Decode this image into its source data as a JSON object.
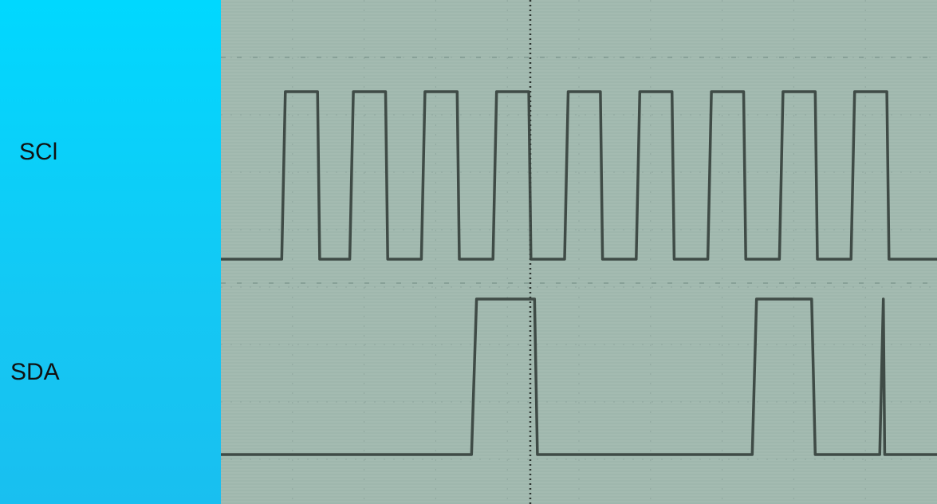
{
  "labels": {
    "scl": "SCl",
    "sda": "SDA"
  },
  "colors": {
    "background": "#00d8ff",
    "screen": "#9fb7ad",
    "trace": "#3a4440",
    "grid": "#7f9890"
  },
  "chart_data": {
    "type": "line",
    "title": "",
    "xlabel": "",
    "ylabel": "",
    "grid": true,
    "xlim": [
      0,
      10
    ],
    "series": [
      {
        "name": "SCl",
        "points": [
          [
            0.0,
            0
          ],
          [
            0.85,
            0
          ],
          [
            0.9,
            1
          ],
          [
            1.35,
            1
          ],
          [
            1.38,
            0
          ],
          [
            1.8,
            0
          ],
          [
            1.85,
            1
          ],
          [
            2.3,
            1
          ],
          [
            2.33,
            0
          ],
          [
            2.8,
            0
          ],
          [
            2.85,
            1
          ],
          [
            3.3,
            1
          ],
          [
            3.33,
            0
          ],
          [
            3.8,
            0
          ],
          [
            3.85,
            1
          ],
          [
            4.3,
            1
          ],
          [
            4.33,
            0
          ],
          [
            4.8,
            0
          ],
          [
            4.85,
            1
          ],
          [
            5.3,
            1
          ],
          [
            5.33,
            0
          ],
          [
            5.8,
            0
          ],
          [
            5.85,
            1
          ],
          [
            6.3,
            1
          ],
          [
            6.33,
            0
          ],
          [
            6.8,
            0
          ],
          [
            6.85,
            1
          ],
          [
            7.3,
            1
          ],
          [
            7.33,
            0
          ],
          [
            7.8,
            0
          ],
          [
            7.85,
            1
          ],
          [
            8.3,
            1
          ],
          [
            8.33,
            0
          ],
          [
            8.8,
            0
          ],
          [
            8.85,
            1
          ],
          [
            9.3,
            1
          ],
          [
            9.33,
            0
          ],
          [
            10.0,
            0
          ]
        ]
      },
      {
        "name": "SDA",
        "points": [
          [
            0.0,
            0
          ],
          [
            3.5,
            0
          ],
          [
            3.57,
            1
          ],
          [
            4.38,
            1
          ],
          [
            4.42,
            0
          ],
          [
            7.42,
            0
          ],
          [
            7.48,
            1
          ],
          [
            8.25,
            1
          ],
          [
            8.3,
            0
          ],
          [
            9.2,
            0
          ],
          [
            9.25,
            1
          ],
          [
            9.27,
            0
          ],
          [
            10.0,
            0
          ]
        ]
      }
    ]
  }
}
